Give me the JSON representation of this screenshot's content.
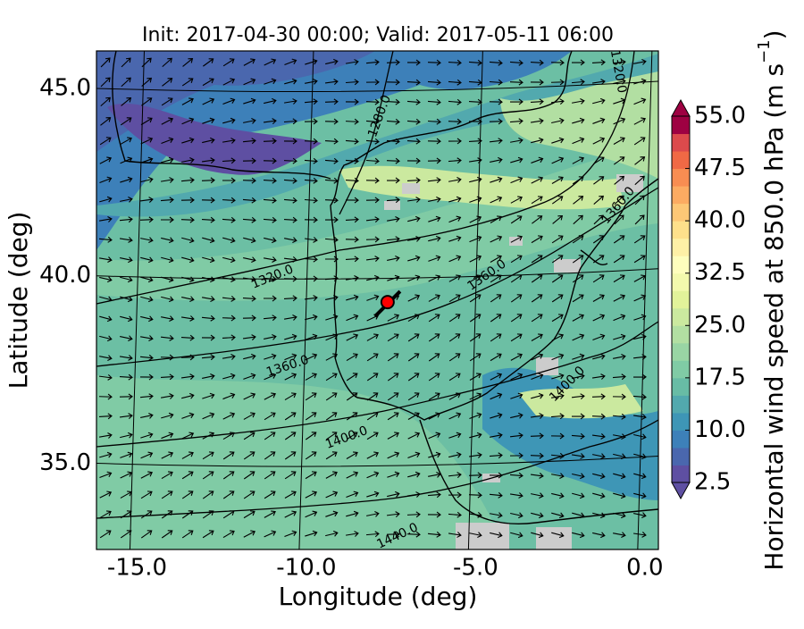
{
  "chart_data": {
    "type": "map",
    "title": "Init: 2017-04-30 00:00; Valid: 2017-05-11 06:00",
    "x_label": "Longitude (deg)",
    "y_label": "Latitude (deg)",
    "xlim": [
      -16.2,
      0.4
    ],
    "ylim": [
      32.7,
      46.0
    ],
    "xticks": [
      {
        "value": -15,
        "label": "-15.0"
      },
      {
        "value": -10,
        "label": "-10.0"
      },
      {
        "value": -5,
        "label": "-5.0"
      },
      {
        "value": 0,
        "label": "0.0"
      }
    ],
    "yticks": [
      {
        "value": 35,
        "label": "35.0"
      },
      {
        "value": 40,
        "label": "40.0"
      },
      {
        "value": 45,
        "label": "45.0"
      }
    ],
    "grid": true,
    "colorbar": {
      "label": "Horizontal wind speed at 850.0 hPa (m s",
      "label_sup": "−1",
      "label_end": ")",
      "clim": [
        2.5,
        55
      ],
      "ticks": [
        2.5,
        {
          "value": 10,
          "label": "10.0"
        },
        17.5,
        {
          "value": 25,
          "label": "25.0"
        },
        32.5,
        {
          "value": 40,
          "label": "40.0"
        },
        47.5,
        {
          "value": 55,
          "label": "55.0"
        }
      ],
      "colors": [
        "#5e4fa2",
        "#4a67ae",
        "#3d80b9",
        "#3e96b6",
        "#52a9ae",
        "#68bca5",
        "#80cba5",
        "#99d5a4",
        "#b2dfa2",
        "#cbe99f",
        "#e2f39a",
        "#f3f9ad",
        "#fefebd",
        "#fef0a6",
        "#fee08b",
        "#fdc776",
        "#fcab62",
        "#f88d52",
        "#f06945",
        "#dc4a4c",
        "#9e0142"
      ]
    },
    "contour_labels": [
      "1280.0",
      "1320.0",
      "1320.0",
      "1360.0",
      "1360.0",
      "1360.0",
      "1400.0",
      "1400.0",
      "1440.0"
    ],
    "points": [
      {
        "lon": -7.6,
        "lat": 39.3,
        "color": "#ff0000"
      }
    ]
  }
}
